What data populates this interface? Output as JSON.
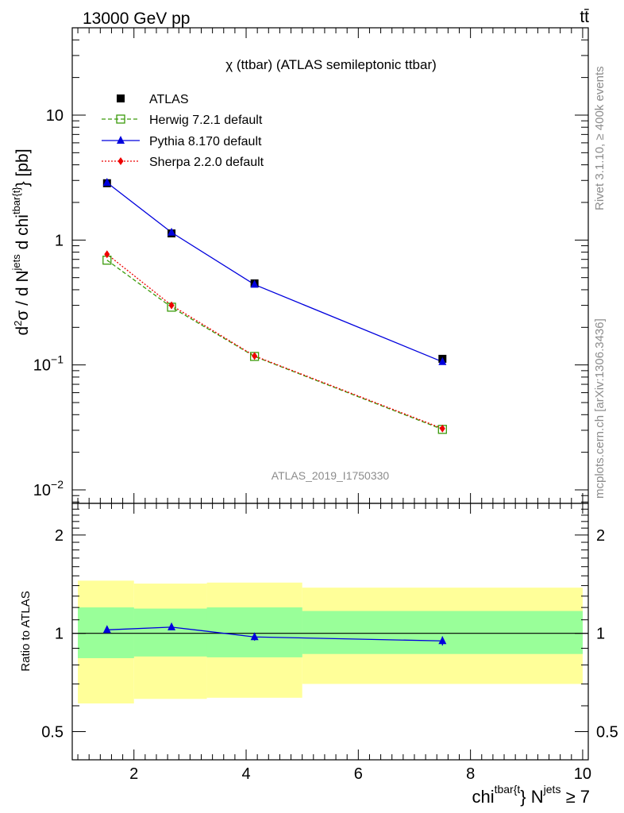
{
  "header": {
    "energy_label": "13000 GeV pp",
    "process_label": "tt̄",
    "plot_title": "χ (ttbar) (ATLAS semileptonic ttbar)",
    "analysis_id": "ATLAS_2019_I1750330",
    "side_label_top": "Rivet 3.1.10, ≥ 400k events",
    "side_label_bottom": "mcplots.cern.ch [arXiv:1306.3436]"
  },
  "axes": {
    "main_ylabel": "d²σ / d N^jets d chi^tbar{t} [pb]",
    "ratio_ylabel": "Ratio to ATLAS",
    "xlabel": "chi^tbar{t} N^jets ≥ 7"
  },
  "chart_data": [
    {
      "type": "line",
      "panel": "main",
      "yscale": "log",
      "xlim": [
        0.9,
        10.1
      ],
      "ylim": [
        0.0078,
        50
      ],
      "x_ticks": [
        "2",
        "4",
        "6",
        "8",
        "10"
      ],
      "y_ticks": [
        {
          "base": "10",
          "exp": "−2",
          "value": 0.01
        },
        {
          "base": "10",
          "exp": "−1",
          "value": 0.1
        },
        {
          "base": "1",
          "exp": "",
          "value": 1
        },
        {
          "base": "10",
          "exp": "",
          "value": 10
        }
      ],
      "legend_position": "top-left",
      "series": [
        {
          "name": "ATLAS",
          "marker": "square-filled",
          "color": "#000000",
          "line": "none",
          "x": [
            1.52,
            2.67,
            4.15,
            7.5
          ],
          "y": [
            2.85,
            1.13,
            0.45,
            0.112
          ]
        },
        {
          "name": "Herwig 7.2.1 default",
          "marker": "square-open",
          "color": "#3a9a0a",
          "line": "dashed",
          "x": [
            1.52,
            2.67,
            4.15,
            7.5
          ],
          "y": [
            0.69,
            0.29,
            0.117,
            0.0305
          ]
        },
        {
          "name": "Pythia 8.170 default",
          "marker": "triangle",
          "color": "#0000dd",
          "line": "solid",
          "x": [
            1.52,
            2.67,
            4.15,
            7.5
          ],
          "y": [
            2.88,
            1.15,
            0.44,
            0.106
          ]
        },
        {
          "name": "Sherpa 2.2.0 default",
          "marker": "diamond",
          "color": "#ee0000",
          "line": "dotted",
          "x": [
            1.52,
            2.67,
            4.15,
            7.5
          ],
          "y": [
            0.77,
            0.3,
            0.118,
            0.031
          ]
        }
      ]
    },
    {
      "type": "line",
      "panel": "ratio",
      "yscale": "log",
      "xlim": [
        0.9,
        10.1
      ],
      "ylim": [
        0.41,
        2.5
      ],
      "y_ticks": [
        "0.5",
        "1",
        "2"
      ],
      "bands": [
        {
          "name": "stat",
          "color": "#99ff99",
          "bins": [
            [
              1.0,
              2.0,
              0.84,
              1.2
            ],
            [
              2.0,
              3.3,
              0.85,
              1.19
            ],
            [
              3.3,
              5.0,
              0.845,
              1.2
            ],
            [
              5.0,
              10.0,
              0.865,
              1.17
            ]
          ]
        },
        {
          "name": "total",
          "color": "#ffff99",
          "bins": [
            [
              1.0,
              2.0,
              0.61,
              1.45
            ],
            [
              2.0,
              3.3,
              0.63,
              1.42
            ],
            [
              3.3,
              5.0,
              0.635,
              1.43
            ],
            [
              5.0,
              10.0,
              0.7,
              1.38
            ]
          ]
        }
      ],
      "series": [
        {
          "name": "Pythia 8.170 default",
          "color": "#0000dd",
          "marker": "triangle",
          "x": [
            1.52,
            2.67,
            4.15,
            7.5
          ],
          "y": [
            1.025,
            1.045,
            0.975,
            0.948
          ],
          "err": [
            0.012,
            0.02,
            0.025,
            0.03
          ]
        }
      ]
    }
  ]
}
